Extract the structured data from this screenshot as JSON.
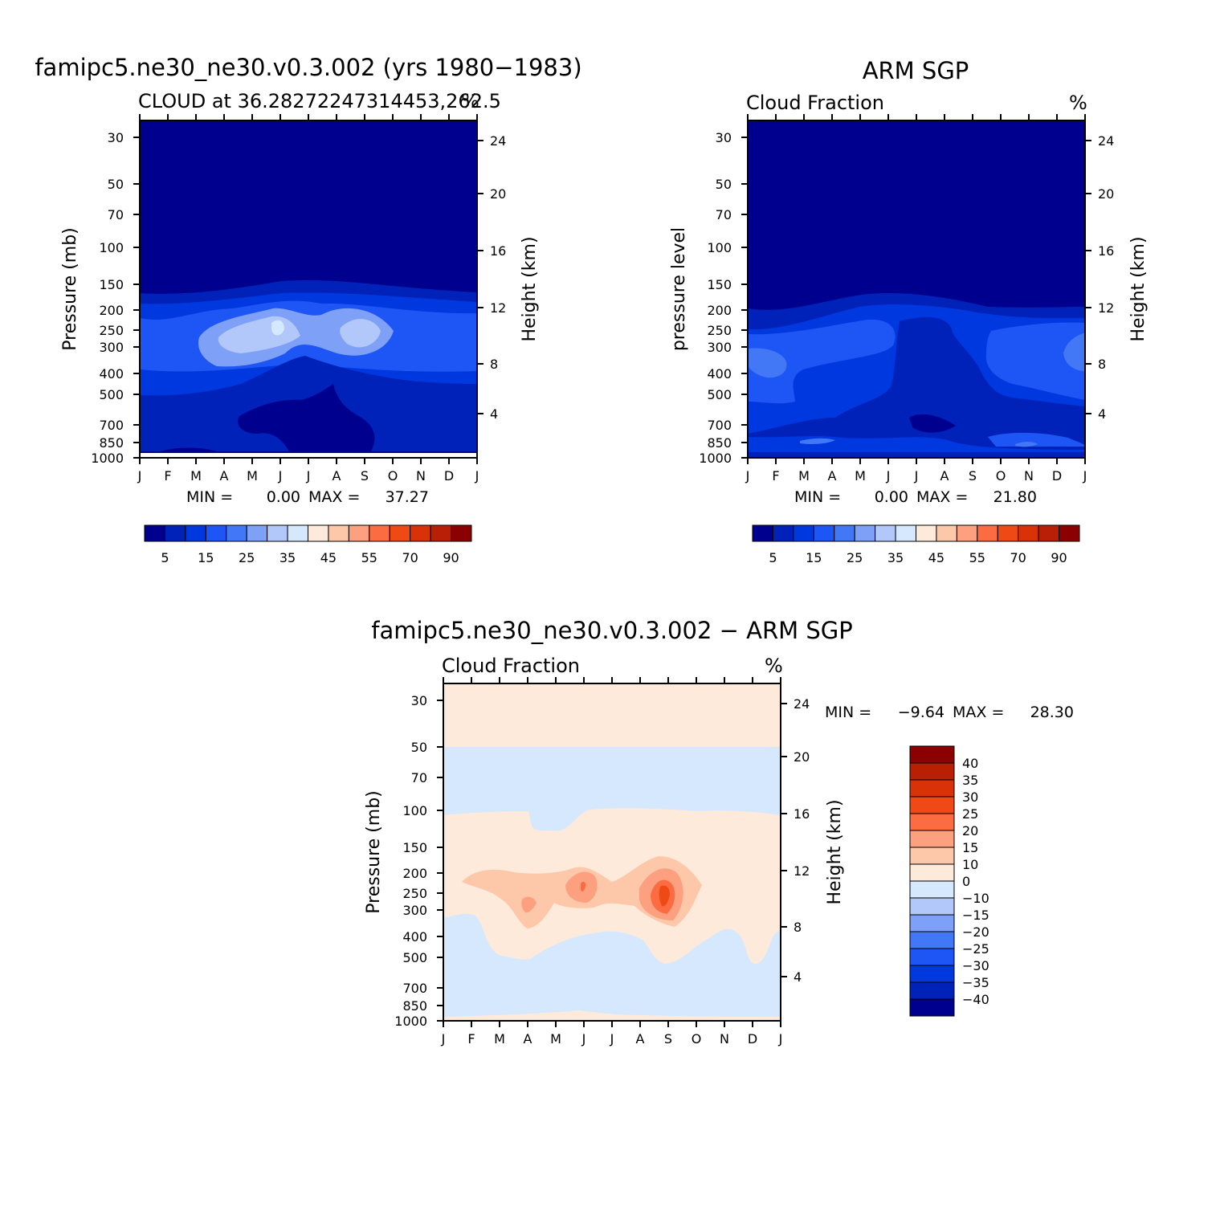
{
  "chart_data": [
    {
      "type": "contour",
      "title": "famipc5.ne30_ne30.v0.3.002 (yrs 1980−1983)",
      "left_string": "CLOUD at 36.28272247314453,262.5",
      "units": "%",
      "ylabel": "Pressure (mb)",
      "ylabel_right": "Height (km)",
      "x_ticks": [
        "J",
        "F",
        "M",
        "A",
        "M",
        "J",
        "J",
        "A",
        "S",
        "O",
        "N",
        "D",
        "J"
      ],
      "y_ticks": [
        "30",
        "50",
        "70",
        "100",
        "150",
        "200",
        "250",
        "300",
        "400",
        "500",
        "700",
        "850",
        "1000"
      ],
      "y_ticks_right": [
        "24",
        "20",
        "16",
        "12",
        "8",
        "4"
      ],
      "min_label": "MIN =",
      "min_value": "0.00",
      "max_label": "MAX =",
      "max_value": "37.27",
      "colorbar_labels": [
        "5",
        "15",
        "25",
        "35",
        "45",
        "55",
        "70",
        "90"
      ]
    },
    {
      "type": "contour",
      "title": "ARM SGP",
      "left_string": "Cloud Fraction",
      "units": "%",
      "ylabel": "pressure level",
      "ylabel_right": "Height (km)",
      "x_ticks": [
        "J",
        "F",
        "M",
        "A",
        "M",
        "J",
        "J",
        "A",
        "S",
        "O",
        "N",
        "D",
        "J"
      ],
      "y_ticks": [
        "30",
        "50",
        "70",
        "100",
        "150",
        "200",
        "250",
        "300",
        "400",
        "500",
        "700",
        "850",
        "1000"
      ],
      "y_ticks_right": [
        "24",
        "20",
        "16",
        "12",
        "8",
        "4"
      ],
      "min_label": "MIN =",
      "min_value": "0.00",
      "max_label": "MAX =",
      "max_value": "21.80",
      "colorbar_labels": [
        "5",
        "15",
        "25",
        "35",
        "45",
        "55",
        "70",
        "90"
      ]
    },
    {
      "type": "contour",
      "title": "famipc5.ne30_ne30.v0.3.002 − ARM SGP",
      "left_string": "Cloud Fraction",
      "units": "%",
      "ylabel": "Pressure (mb)",
      "ylabel_right": "Height (km)",
      "x_ticks": [
        "J",
        "F",
        "M",
        "A",
        "M",
        "J",
        "J",
        "A",
        "S",
        "O",
        "N",
        "D",
        "J"
      ],
      "y_ticks": [
        "30",
        "50",
        "70",
        "100",
        "150",
        "200",
        "250",
        "300",
        "400",
        "500",
        "700",
        "850",
        "1000"
      ],
      "y_ticks_right": [
        "24",
        "20",
        "16",
        "12",
        "8",
        "4"
      ],
      "min_label": "MIN =",
      "min_value": "−9.64",
      "max_label": "MAX =",
      "max_value": "28.30",
      "colorbar_labels": [
        "40",
        "35",
        "30",
        "25",
        "20",
        "15",
        "10",
        "0",
        "−10",
        "−15",
        "−20",
        "−25",
        "−30",
        "−35",
        "−40"
      ]
    }
  ],
  "palette": [
    "#00008f",
    "#0022b8",
    "#0038e0",
    "#1e55f5",
    "#4278f5",
    "#7fa0f7",
    "#b3c8fa",
    "#d6e8fd",
    "#feeadb",
    "#fdc8aa",
    "#fca080",
    "#fb6c43",
    "#ef4a16",
    "#d93208",
    "#b81f04",
    "#8b0000"
  ]
}
